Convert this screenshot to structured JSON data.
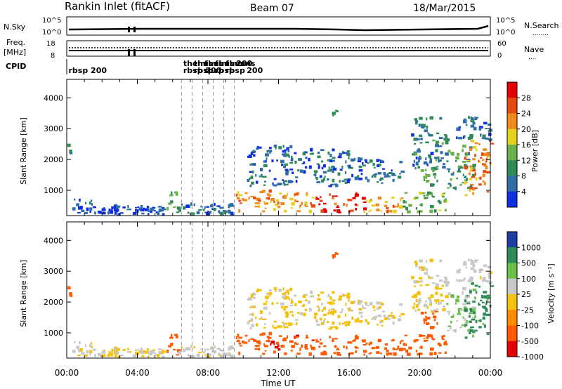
{
  "header": {
    "station": "Rankin Inlet (fitACF)",
    "beam": "Beam 07",
    "date": "18/Mar/2015"
  },
  "noise_panel": {
    "left_label": "N.Sky",
    "right_label": "N.Search",
    "right_legend": "........",
    "left_ticks": [
      "10^5",
      "10^0"
    ],
    "right_ticks": [
      "10^5",
      "10^0"
    ]
  },
  "freq_panel": {
    "left_label_line1": "Freq.",
    "left_label_line2": "[MHz]",
    "right_label": "Nave",
    "right_legend": "....",
    "left_ticks": [
      "18",
      "8"
    ],
    "right_ticks": [
      "60",
      "0"
    ]
  },
  "cpid": {
    "label": "CPID",
    "entries": [
      {
        "text": "rbsp 200",
        "hour": 0.1,
        "row": 1
      },
      {
        "text": "themis",
        "hour": 6.6,
        "row": 0
      },
      {
        "text": "rbsp 200",
        "hour": 6.6,
        "row": 1
      },
      {
        "text": "themis",
        "hour": 7.2,
        "row": 0
      },
      {
        "text": "rbsp",
        "hour": 7.2,
        "row": 1
      },
      {
        "text": "themis",
        "hour": 7.8,
        "row": 0
      },
      {
        "text": "rbsp",
        "hour": 7.8,
        "row": 1
      },
      {
        "text": "themis",
        "hour": 8.4,
        "row": 0
      },
      {
        "text": "rbsp",
        "hour": 8.4,
        "row": 1
      },
      {
        "text": "themis",
        "hour": 9.0,
        "row": 0
      },
      {
        "text": "rbsp",
        "hour": 9.0,
        "row": 1
      },
      {
        "text": "200",
        "hour": 9.6,
        "row": 0
      },
      {
        "text": "200",
        "hour": 10.2,
        "row": 1
      }
    ]
  },
  "power_panel": {
    "ylabel": "Slant Range [km]",
    "yticks": [
      "1000",
      "2000",
      "3000",
      "4000"
    ],
    "colorbar_label": "Power [dB]",
    "colorbar_ticks": [
      "28",
      "24",
      "20",
      "16",
      "12",
      "8",
      "4"
    ]
  },
  "velocity_panel": {
    "ylabel": "Slant Range [km]",
    "yticks": [
      "1000",
      "2000",
      "3000",
      "4000"
    ],
    "colorbar_label": "Velocity [m s⁻¹]",
    "colorbar_ticks": [
      "1000",
      "500",
      "100",
      "25",
      "-25",
      "-100",
      "-500",
      "-1000"
    ]
  },
  "xaxis": {
    "label": "Time UT",
    "ticks": [
      "00:00",
      "04:00",
      "08:00",
      "12:00",
      "16:00",
      "20:00",
      "00:00"
    ]
  },
  "chart_data": {
    "type": "heatmap",
    "x_unit": "hours UT",
    "xlim": [
      0,
      24
    ],
    "ylim_km": [
      180,
      4600
    ],
    "mode_change_hours": [
      6.5,
      7.1,
      7.7,
      8.3,
      8.9,
      9.5
    ],
    "power_colorscale": [
      "#0f2fe0",
      "#2e6ea8",
      "#2e8b57",
      "#6ab04c",
      "#e6d21c",
      "#f08a1c",
      "#e84a10",
      "#e60000"
    ],
    "power_scale_db": [
      2,
      30
    ],
    "velocity_colorscale": [
      "#e80000",
      "#ff5a00",
      "#ff8c00",
      "#f4c20d",
      "#c8c8c8",
      "#6cc04a",
      "#2e8b57",
      "#1f3fa0"
    ],
    "velocity_scale_ms": [
      -1000,
      1000
    ],
    "scatter_blobs": [
      {
        "t0": 0.0,
        "t1": 0.2,
        "r0": 2100,
        "r1": 2450,
        "power": 8,
        "vel": -300
      },
      {
        "t0": 0.3,
        "t1": 1.5,
        "r0": 180,
        "r1": 700,
        "power": 6,
        "vel": 30
      },
      {
        "t0": 1.5,
        "t1": 5.5,
        "r0": 180,
        "r1": 450,
        "power": 5,
        "vel": 20
      },
      {
        "t0": 5.6,
        "t1": 6.3,
        "r0": 250,
        "r1": 950,
        "power": 12,
        "vel": -200
      },
      {
        "t0": 6.3,
        "t1": 9.5,
        "r0": 180,
        "r1": 550,
        "power": 7,
        "vel": 40
      },
      {
        "t0": 9.5,
        "t1": 11.5,
        "r0": 250,
        "r1": 950,
        "power": 22,
        "vel": -300
      },
      {
        "t0": 11.5,
        "t1": 14.0,
        "r0": 250,
        "r1": 900,
        "power": 20,
        "vel": -400
      },
      {
        "t0": 14.0,
        "t1": 16.8,
        "r0": 250,
        "r1": 850,
        "power": 26,
        "vel": -350
      },
      {
        "t0": 16.8,
        "t1": 19.0,
        "r0": 250,
        "r1": 750,
        "power": 20,
        "vel": -300
      },
      {
        "t0": 19.0,
        "t1": 21.5,
        "r0": 250,
        "r1": 900,
        "power": 14,
        "vel": -150
      },
      {
        "t0": 10.2,
        "t1": 13.0,
        "r0": 1100,
        "r1": 2400,
        "power": 7,
        "vel": 10
      },
      {
        "t0": 13.0,
        "t1": 16.0,
        "r0": 1100,
        "r1": 2300,
        "power": 7,
        "vel": 10
      },
      {
        "t0": 15.0,
        "t1": 15.3,
        "r0": 3300,
        "r1": 3550,
        "power": 10,
        "vel": -300
      },
      {
        "t0": 16.0,
        "t1": 19.0,
        "r0": 1200,
        "r1": 2000,
        "power": 8,
        "vel": 15
      },
      {
        "t0": 19.5,
        "t1": 21.5,
        "r0": 1600,
        "r1": 3300,
        "power": 9,
        "vel": 20
      },
      {
        "t0": 20.0,
        "t1": 21.0,
        "r0": 1000,
        "r1": 1700,
        "power": 14,
        "vel": -250
      },
      {
        "t0": 21.5,
        "t1": 23.0,
        "r0": 1000,
        "r1": 2400,
        "power": 12,
        "vel": 100
      },
      {
        "t0": 22.5,
        "t1": 24.0,
        "r0": 800,
        "r1": 2600,
        "power": 22,
        "vel": 700
      },
      {
        "t0": 22.0,
        "t1": 24.0,
        "r0": 2600,
        "r1": 3400,
        "power": 8,
        "vel": 50
      }
    ]
  }
}
